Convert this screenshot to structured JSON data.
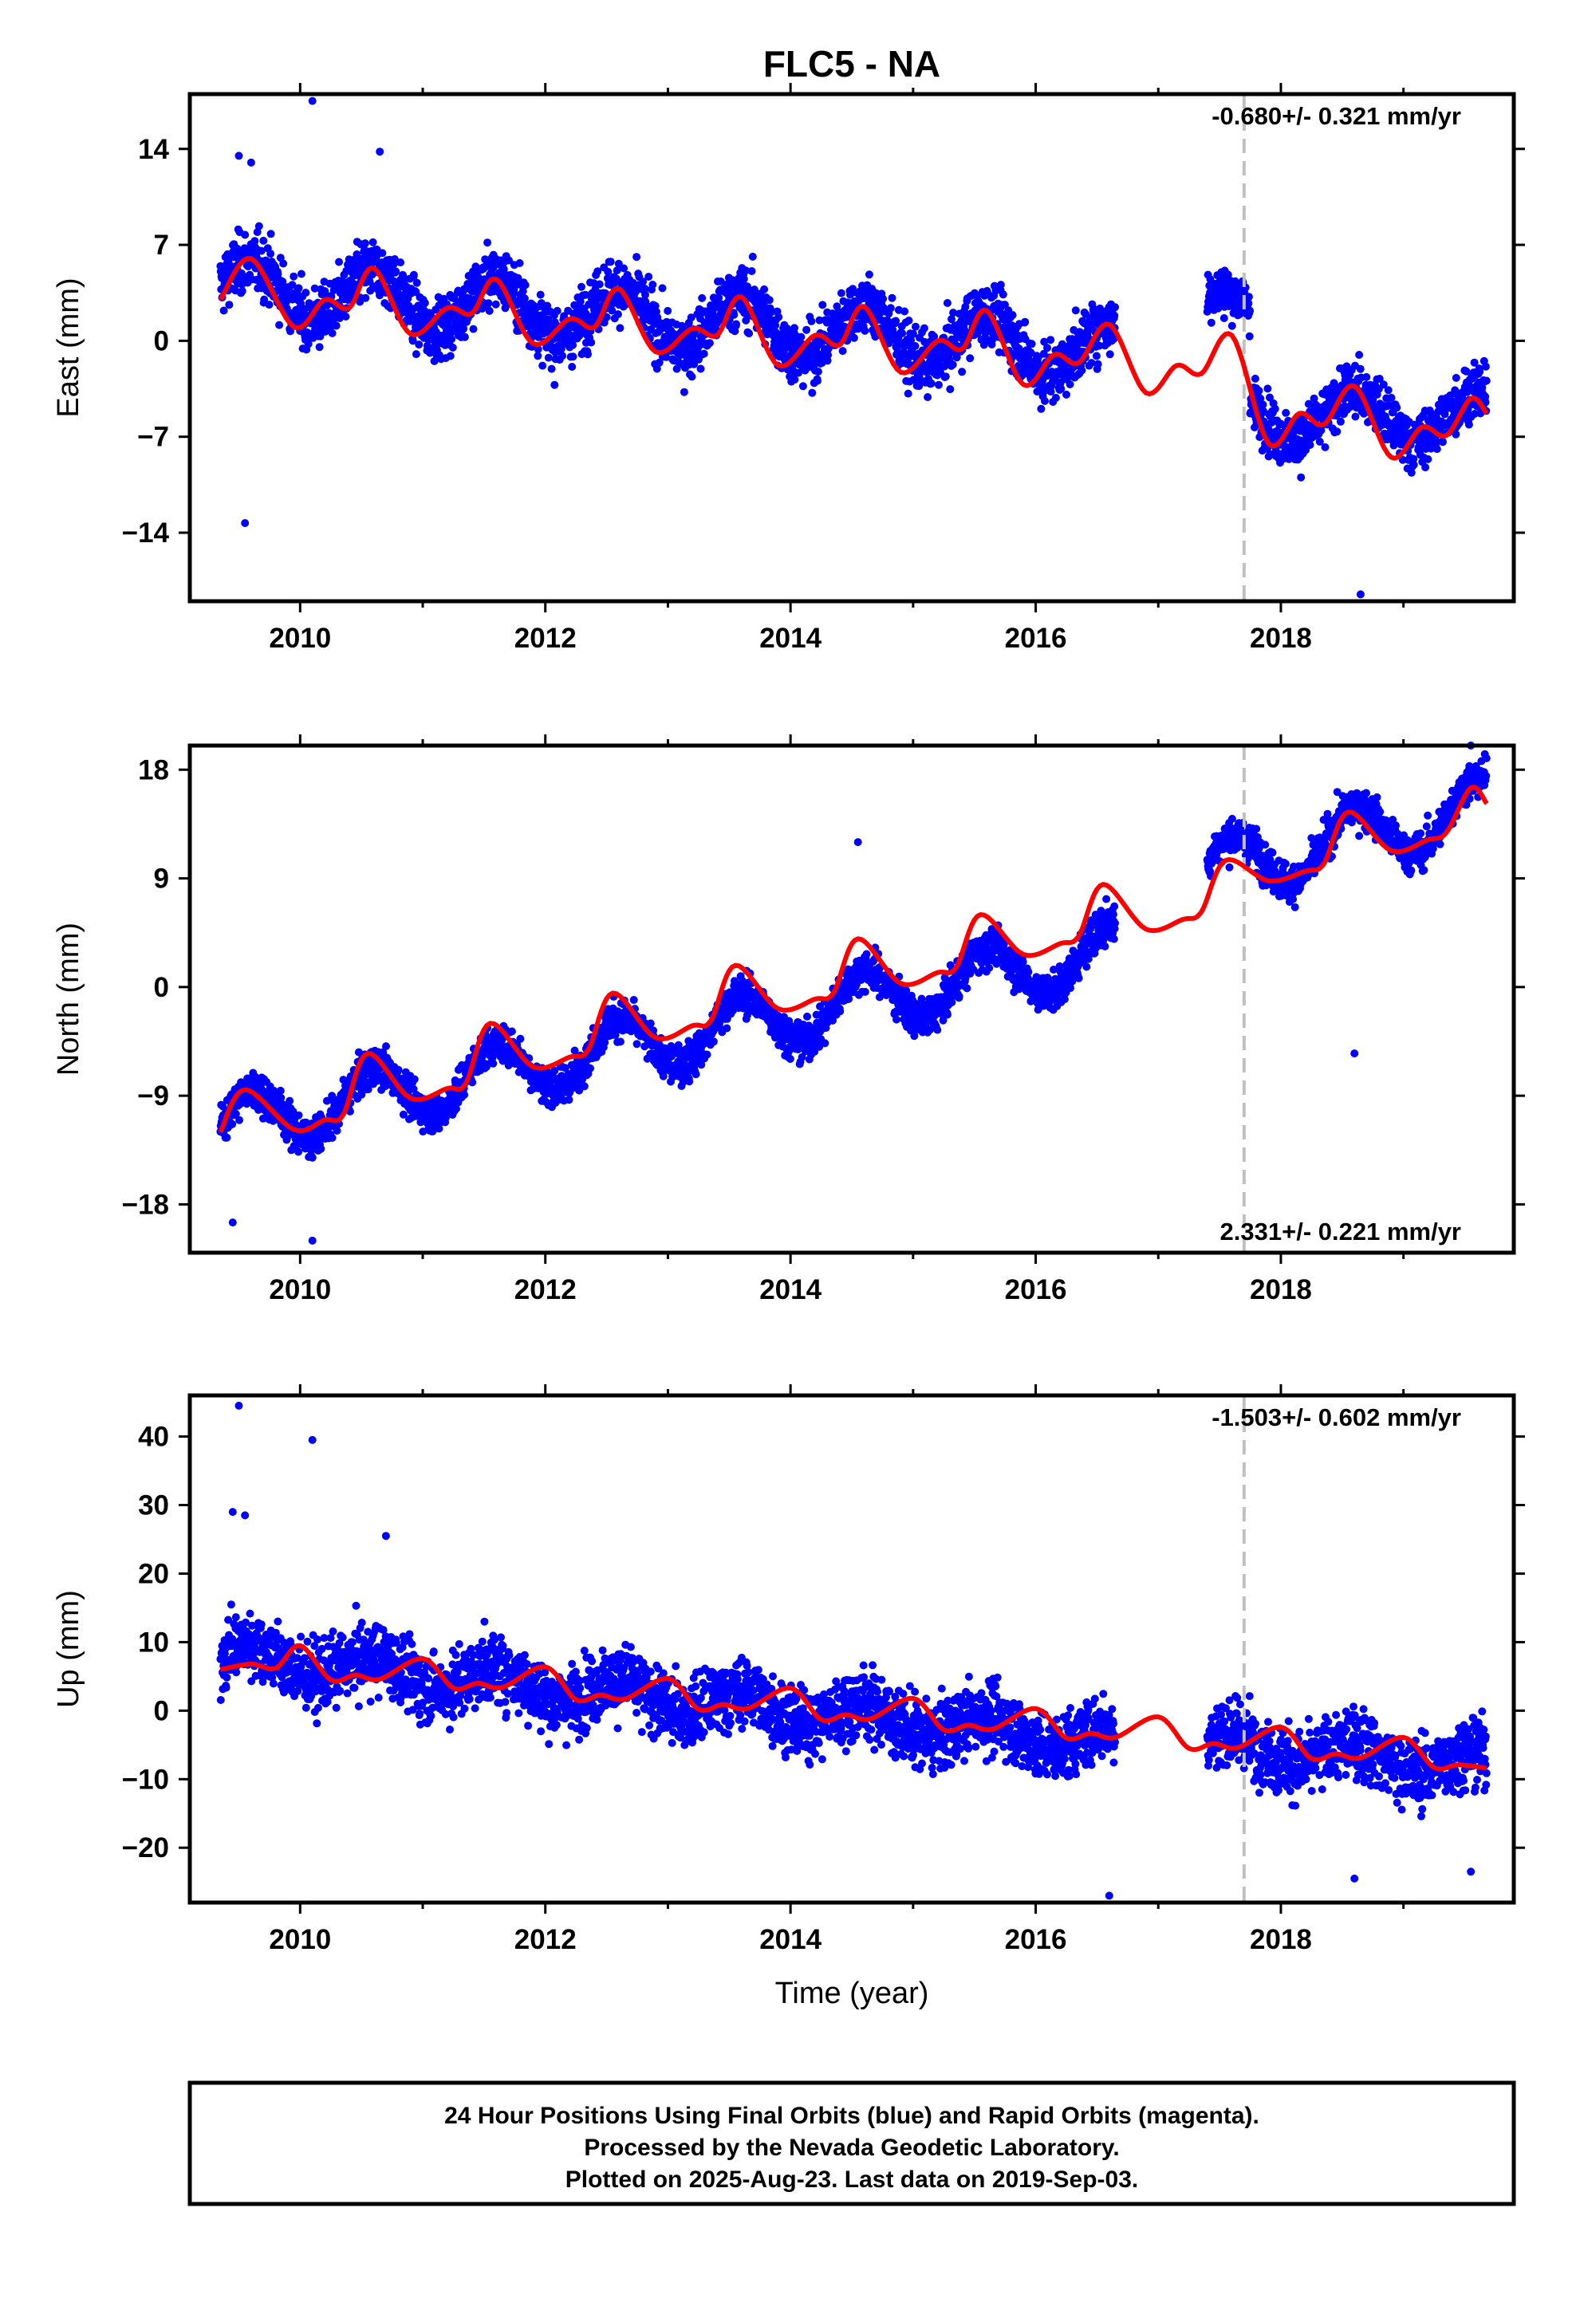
{
  "chart_data": {
    "title": "FLC5 - NA",
    "type": "scatter",
    "xlabel": "Time (year)",
    "xlim": [
      2009.1,
      2019.9
    ],
    "x_ticks": [
      2010,
      2012,
      2014,
      2016,
      2018
    ],
    "x_tick_labels": [
      "2010",
      "2012",
      "2014",
      "2016",
      "2018"
    ],
    "vertical_marker_x": 2017.7,
    "colors": {
      "points": "#0000ff",
      "model": "#ff0000",
      "marker": "#c0c0c0",
      "frame": "#000000"
    },
    "panels": [
      {
        "name": "east",
        "ylabel": "East (mm)",
        "ylim": [
          -19,
          18
        ],
        "y_ticks": [
          -14,
          -7,
          0,
          7,
          14
        ],
        "y_tick_labels": [
          "−14",
          "−7",
          "0",
          "7",
          "14"
        ],
        "rate_text": "-0.680+/- 0.321 mm/yr",
        "rate_position": "top",
        "point_segments": [
          {
            "t0": 2009.35,
            "t1": 2016.65,
            "start": 4.0,
            "end": -0.8,
            "amp": 2.0,
            "scatter": 2.2
          },
          {
            "t0": 2017.4,
            "t1": 2017.75,
            "start": 3.0,
            "end": 2.0,
            "amp": 1.0,
            "scatter": 1.8
          },
          {
            "t0": 2017.75,
            "t1": 2019.68,
            "start": -5.5,
            "end": -5.5,
            "amp": 1.8,
            "scatter": 2.0
          }
        ],
        "outliers": [
          [
            2010.1,
            17.5
          ],
          [
            2009.5,
            13.5
          ],
          [
            2009.6,
            13.0
          ],
          [
            2010.65,
            13.8
          ],
          [
            2009.55,
            -13.3
          ],
          [
            2018.65,
            -18.5
          ]
        ],
        "model": [
          [
            2009.35,
            3.0
          ],
          [
            2009.6,
            6.0
          ],
          [
            2009.95,
            1.0
          ],
          [
            2010.2,
            3.0
          ],
          [
            2010.4,
            2.4
          ],
          [
            2010.6,
            5.3
          ],
          [
            2010.9,
            0.5
          ],
          [
            2011.2,
            2.4
          ],
          [
            2011.4,
            2.0
          ],
          [
            2011.6,
            4.5
          ],
          [
            2011.9,
            -0.2
          ],
          [
            2012.2,
            1.6
          ],
          [
            2012.4,
            1.0
          ],
          [
            2012.6,
            3.8
          ],
          [
            2012.9,
            -0.8
          ],
          [
            2013.2,
            0.9
          ],
          [
            2013.4,
            0.4
          ],
          [
            2013.6,
            3.2
          ],
          [
            2013.9,
            -1.8
          ],
          [
            2014.2,
            0.4
          ],
          [
            2014.4,
            -0.3
          ],
          [
            2014.6,
            2.5
          ],
          [
            2014.9,
            -2.3
          ],
          [
            2015.2,
            0.0
          ],
          [
            2015.4,
            -0.6
          ],
          [
            2015.6,
            2.2
          ],
          [
            2015.9,
            -3.2
          ],
          [
            2016.15,
            -1.0
          ],
          [
            2016.35,
            -1.6
          ],
          [
            2016.6,
            1.2
          ],
          [
            2016.9,
            -3.8
          ],
          [
            2017.15,
            -1.8
          ],
          [
            2017.35,
            -2.4
          ],
          [
            2017.6,
            0.4
          ],
          [
            2017.9,
            -7.5
          ],
          [
            2018.15,
            -5.3
          ],
          [
            2018.35,
            -6.1
          ],
          [
            2018.6,
            -3.3
          ],
          [
            2018.9,
            -8.5
          ],
          [
            2019.15,
            -6.3
          ],
          [
            2019.35,
            -6.9
          ],
          [
            2019.55,
            -4.2
          ],
          [
            2019.68,
            -5.3
          ]
        ]
      },
      {
        "name": "north",
        "ylabel": "North (mm)",
        "ylim": [
          -22,
          20
        ],
        "y_ticks": [
          -18,
          -9,
          0,
          9,
          18
        ],
        "y_tick_labels": [
          "−18",
          "−9",
          "0",
          "9",
          "18"
        ],
        "rate_text": "2.331+/- 0.221 mm/yr",
        "rate_position": "bottom",
        "point_segments": [
          {
            "t0": 2009.35,
            "t1": 2016.65,
            "start": -11.5,
            "end": 3.0,
            "amp": 2.4,
            "scatter": 1.6
          },
          {
            "t0": 2017.4,
            "t1": 2019.68,
            "start": 9.5,
            "end": 15.0,
            "amp": 2.5,
            "scatter": 1.6
          }
        ],
        "outliers": [
          [
            2009.45,
            -19.5
          ],
          [
            2010.1,
            -21.0
          ],
          [
            2014.55,
            12.0
          ],
          [
            2019.55,
            20.0
          ],
          [
            2018.6,
            -5.5
          ]
        ],
        "model": [
          [
            2009.35,
            -12.0
          ],
          [
            2009.55,
            -8.5
          ],
          [
            2009.95,
            -11.8
          ],
          [
            2010.2,
            -11.0
          ],
          [
            2010.35,
            -10.6
          ],
          [
            2010.55,
            -5.5
          ],
          [
            2010.9,
            -9.2
          ],
          [
            2011.2,
            -8.4
          ],
          [
            2011.35,
            -8.0
          ],
          [
            2011.55,
            -3.0
          ],
          [
            2011.9,
            -6.6
          ],
          [
            2012.2,
            -5.8
          ],
          [
            2012.35,
            -5.2
          ],
          [
            2012.55,
            -0.5
          ],
          [
            2012.9,
            -4.2
          ],
          [
            2013.2,
            -3.2
          ],
          [
            2013.35,
            -2.8
          ],
          [
            2013.55,
            1.8
          ],
          [
            2013.9,
            -1.8
          ],
          [
            2014.2,
            -1.0
          ],
          [
            2014.35,
            -0.5
          ],
          [
            2014.55,
            4.0
          ],
          [
            2014.9,
            0.3
          ],
          [
            2015.2,
            1.2
          ],
          [
            2015.35,
            1.6
          ],
          [
            2015.55,
            6.0
          ],
          [
            2015.9,
            2.7
          ],
          [
            2016.2,
            3.6
          ],
          [
            2016.35,
            4.2
          ],
          [
            2016.55,
            8.5
          ],
          [
            2016.9,
            4.8
          ],
          [
            2017.2,
            5.6
          ],
          [
            2017.35,
            6.2
          ],
          [
            2017.55,
            10.5
          ],
          [
            2017.9,
            8.8
          ],
          [
            2018.2,
            9.6
          ],
          [
            2018.35,
            10.2
          ],
          [
            2018.55,
            14.5
          ],
          [
            2018.9,
            11.3
          ],
          [
            2019.2,
            12.2
          ],
          [
            2019.35,
            12.8
          ],
          [
            2019.55,
            16.5
          ],
          [
            2019.68,
            15.2
          ]
        ]
      },
      {
        "name": "up",
        "ylabel": "Up (mm)",
        "ylim": [
          -28,
          46
        ],
        "y_ticks": [
          -20,
          -10,
          0,
          10,
          20,
          30,
          40
        ],
        "y_tick_labels": [
          "−20",
          "−10",
          "0",
          "10",
          "20",
          "30",
          "40"
        ],
        "rate_text": "-1.503+/- 0.602 mm/yr",
        "rate_position": "top",
        "point_segments": [
          {
            "t0": 2009.35,
            "t1": 2016.65,
            "start": 8.0,
            "end": -4.5,
            "amp": 2.0,
            "scatter": 5.0
          },
          {
            "t0": 2017.4,
            "t1": 2019.68,
            "start": -5.0,
            "end": -8.0,
            "amp": 2.0,
            "scatter": 5.0
          }
        ],
        "outliers": [
          [
            2009.5,
            44.5
          ],
          [
            2010.1,
            39.5
          ],
          [
            2009.45,
            29.0
          ],
          [
            2009.55,
            28.5
          ],
          [
            2010.7,
            25.5
          ],
          [
            2016.6,
            -27.0
          ],
          [
            2018.6,
            -24.5
          ],
          [
            2019.55,
            -23.5
          ]
        ],
        "model": [
          [
            2009.35,
            6.0
          ],
          [
            2009.6,
            6.8
          ],
          [
            2009.8,
            6.2
          ],
          [
            2010.0,
            9.5
          ],
          [
            2010.25,
            4.5
          ],
          [
            2010.45,
            5.2
          ],
          [
            2010.65,
            4.6
          ],
          [
            2011.0,
            7.6
          ],
          [
            2011.25,
            3.3
          ],
          [
            2011.45,
            4.0
          ],
          [
            2011.65,
            3.4
          ],
          [
            2012.0,
            6.4
          ],
          [
            2012.25,
            1.6
          ],
          [
            2012.45,
            2.3
          ],
          [
            2012.65,
            1.7
          ],
          [
            2013.0,
            4.7
          ],
          [
            2013.25,
            0.2
          ],
          [
            2013.45,
            0.9
          ],
          [
            2013.65,
            0.3
          ],
          [
            2014.0,
            3.3
          ],
          [
            2014.25,
            -1.3
          ],
          [
            2014.45,
            -0.6
          ],
          [
            2014.65,
            -1.2
          ],
          [
            2015.0,
            1.8
          ],
          [
            2015.25,
            -2.8
          ],
          [
            2015.45,
            -2.1
          ],
          [
            2015.65,
            -2.7
          ],
          [
            2016.0,
            0.3
          ],
          [
            2016.25,
            -4.0
          ],
          [
            2016.45,
            -3.3
          ],
          [
            2016.65,
            -3.9
          ],
          [
            2017.0,
            -0.9
          ],
          [
            2017.25,
            -5.5
          ],
          [
            2017.45,
            -4.8
          ],
          [
            2017.65,
            -5.4
          ],
          [
            2018.0,
            -2.4
          ],
          [
            2018.25,
            -7.0
          ],
          [
            2018.45,
            -6.3
          ],
          [
            2018.65,
            -6.9
          ],
          [
            2019.0,
            -3.9
          ],
          [
            2019.25,
            -8.3
          ],
          [
            2019.45,
            -7.9
          ],
          [
            2019.68,
            -8.4
          ]
        ]
      }
    ]
  },
  "footer": {
    "lines": [
      "24 Hour Positions Using Final Orbits (blue) and Rapid Orbits (magenta).",
      "Processed by the Nevada Geodetic Laboratory.",
      "Plotted on 2025-Aug-23. Last data on 2019-Sep-03."
    ]
  }
}
